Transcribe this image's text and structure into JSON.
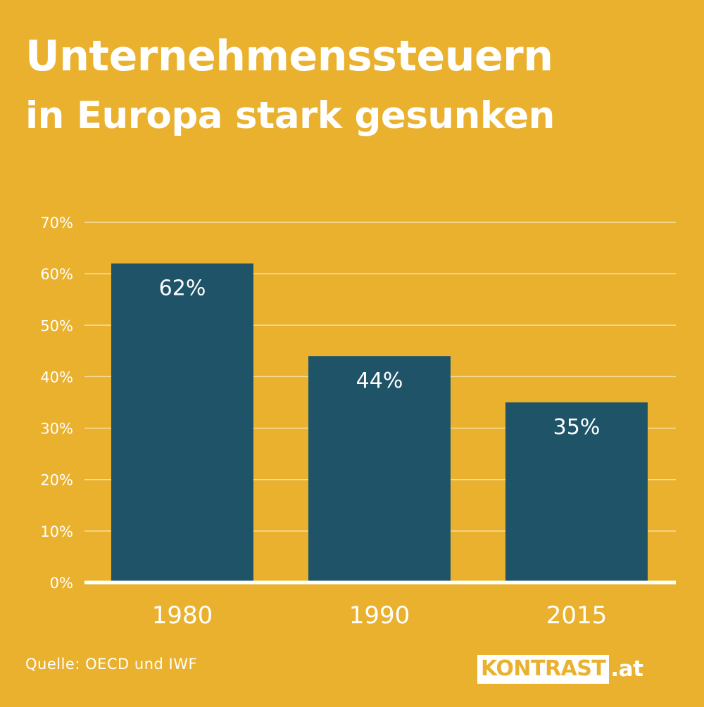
{
  "title": {
    "line1": "Unternehmenssteuern",
    "line2": "in Europa stark gesunken"
  },
  "chart_data": {
    "type": "bar",
    "categories": [
      "1980",
      "1990",
      "2015"
    ],
    "values": [
      62,
      44,
      35
    ],
    "data_labels": [
      "62%",
      "44%",
      "35%"
    ],
    "ylim": [
      0,
      70
    ],
    "yticks": [
      0,
      10,
      20,
      30,
      40,
      50,
      60,
      70
    ],
    "ytick_labels": [
      "0%",
      "10%",
      "20%",
      "30%",
      "40%",
      "50%",
      "60%",
      "70%"
    ],
    "xlabel": "",
    "ylabel": "",
    "grid": true,
    "colors": {
      "background": "#E9B12E",
      "bar": "#1F5468",
      "text": "#FFFFFF",
      "grid": "#F6DFA3",
      "baseline": "#FFFFFF"
    }
  },
  "footer": {
    "source": "Quelle: OECD und IWF",
    "logo_name": "KONTRAST",
    "logo_suffix": ".at"
  }
}
